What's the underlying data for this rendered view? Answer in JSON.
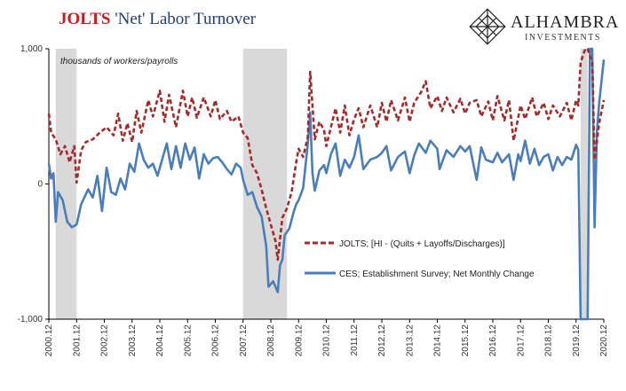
{
  "header": {
    "title_highlight": "JOLTS",
    "title_rest": " 'Net' Labor Turnover"
  },
  "logo": {
    "name": "ALHAMBRA",
    "sub": "INVESTMENTS",
    "icon": "diamond-lattice-icon"
  },
  "colors": {
    "jolts": "#a52a2a",
    "ces": "#4a7ebb",
    "recession": "#d9d9d9",
    "axis_text": "#333333"
  },
  "chart_data": {
    "type": "line",
    "title": "JOLTS 'Net' Labor Turnover",
    "annotation": "thousands of workers/payrolls",
    "ylim": [
      -1000,
      1000
    ],
    "y_ticks": [
      1000,
      0,
      -1000
    ],
    "y_tick_labels": [
      "1,000",
      "0",
      "-1,000"
    ],
    "x_range": [
      2000.917,
      2020.917
    ],
    "x_ticks": [
      2000.917,
      2001.917,
      2002.917,
      2003.917,
      2004.917,
      2005.917,
      2006.917,
      2007.917,
      2008.917,
      2009.917,
      2010.917,
      2011.917,
      2012.917,
      2013.917,
      2014.917,
      2015.917,
      2016.917,
      2017.917,
      2018.917,
      2019.917,
      2020.917
    ],
    "x_tick_labels": [
      "2000.12",
      "2001.12",
      "2002.12",
      "2003.12",
      "2004.12",
      "2005.12",
      "2006.12",
      "2007.12",
      "2008.12",
      "2009.12",
      "2010.12",
      "2011.12",
      "2012.12",
      "2013.12",
      "2014.12",
      "2015.12",
      "2016.12",
      "2017.12",
      "2018.12",
      "2019.12",
      "2020.12"
    ],
    "recessions": [
      [
        2001.167,
        2001.917
      ],
      [
        2007.917,
        2009.5
      ],
      [
        2020.083,
        2020.333
      ]
    ],
    "legend": "center-right",
    "series": [
      {
        "name": "JOLTS; [HI - (Quits + Layoffs/Discharges)]",
        "style": "dashed",
        "points": [
          [
            2000.917,
            520
          ],
          [
            2001.0,
            380
          ],
          [
            2001.167,
            330
          ],
          [
            2001.333,
            220
          ],
          [
            2001.5,
            280
          ],
          [
            2001.667,
            160
          ],
          [
            2001.833,
            280
          ],
          [
            2001.917,
            10
          ],
          [
            2002.083,
            250
          ],
          [
            2002.25,
            310
          ],
          [
            2002.5,
            330
          ],
          [
            2002.75,
            380
          ],
          [
            2003.0,
            420
          ],
          [
            2003.25,
            360
          ],
          [
            2003.417,
            520
          ],
          [
            2003.583,
            320
          ],
          [
            2003.75,
            450
          ],
          [
            2003.917,
            310
          ],
          [
            2004.083,
            540
          ],
          [
            2004.25,
            380
          ],
          [
            2004.5,
            620
          ],
          [
            2004.667,
            500
          ],
          [
            2004.917,
            690
          ],
          [
            2005.083,
            460
          ],
          [
            2005.25,
            660
          ],
          [
            2005.5,
            420
          ],
          [
            2005.75,
            690
          ],
          [
            2005.917,
            500
          ],
          [
            2006.083,
            640
          ],
          [
            2006.25,
            490
          ],
          [
            2006.5,
            640
          ],
          [
            2006.75,
            500
          ],
          [
            2006.917,
            620
          ],
          [
            2007.083,
            480
          ],
          [
            2007.333,
            540
          ],
          [
            2007.5,
            460
          ],
          [
            2007.75,
            500
          ],
          [
            2007.917,
            380
          ],
          [
            2008.083,
            340
          ],
          [
            2008.25,
            140
          ],
          [
            2008.417,
            80
          ],
          [
            2008.583,
            -40
          ],
          [
            2008.75,
            -180
          ],
          [
            2008.917,
            -300
          ],
          [
            2009.083,
            -420
          ],
          [
            2009.167,
            -560
          ],
          [
            2009.333,
            -250
          ],
          [
            2009.5,
            -180
          ],
          [
            2009.667,
            -60
          ],
          [
            2009.833,
            160
          ],
          [
            2009.917,
            260
          ],
          [
            2010.083,
            200
          ],
          [
            2010.25,
            350
          ],
          [
            2010.333,
            830
          ],
          [
            2010.5,
            330
          ],
          [
            2010.667,
            460
          ],
          [
            2010.833,
            400
          ],
          [
            2010.917,
            280
          ],
          [
            2011.083,
            420
          ],
          [
            2011.25,
            560
          ],
          [
            2011.417,
            380
          ],
          [
            2011.583,
            580
          ],
          [
            2011.75,
            360
          ],
          [
            2011.917,
            480
          ],
          [
            2012.083,
            560
          ],
          [
            2012.25,
            420
          ],
          [
            2012.5,
            580
          ],
          [
            2012.75,
            420
          ],
          [
            2012.917,
            600
          ],
          [
            2013.083,
            460
          ],
          [
            2013.25,
            620
          ],
          [
            2013.5,
            470
          ],
          [
            2013.75,
            640
          ],
          [
            2013.917,
            460
          ],
          [
            2014.083,
            600
          ],
          [
            2014.333,
            680
          ],
          [
            2014.5,
            760
          ],
          [
            2014.667,
            560
          ],
          [
            2014.917,
            650
          ],
          [
            2015.083,
            540
          ],
          [
            2015.25,
            640
          ],
          [
            2015.5,
            530
          ],
          [
            2015.75,
            630
          ],
          [
            2015.917,
            520
          ],
          [
            2016.083,
            600
          ],
          [
            2016.333,
            620
          ],
          [
            2016.5,
            500
          ],
          [
            2016.75,
            610
          ],
          [
            2016.917,
            470
          ],
          [
            2017.083,
            650
          ],
          [
            2017.333,
            470
          ],
          [
            2017.5,
            620
          ],
          [
            2017.667,
            320
          ],
          [
            2017.917,
            580
          ],
          [
            2018.083,
            480
          ],
          [
            2018.333,
            640
          ],
          [
            2018.5,
            500
          ],
          [
            2018.75,
            600
          ],
          [
            2018.917,
            480
          ],
          [
            2019.083,
            580
          ],
          [
            2019.333,
            500
          ],
          [
            2019.583,
            600
          ],
          [
            2019.75,
            470
          ],
          [
            2019.917,
            620
          ],
          [
            2020.0,
            580
          ],
          [
            2020.083,
            900
          ],
          [
            2020.25,
            1000
          ],
          [
            2020.333,
            1000
          ],
          [
            2020.5,
            900
          ],
          [
            2020.583,
            180
          ],
          [
            2020.75,
            450
          ],
          [
            2020.917,
            620
          ]
        ]
      },
      {
        "name": "CES; Establishment Survey; Net Monthly Change",
        "style": "solid",
        "points": [
          [
            2000.917,
            150
          ],
          [
            2001.0,
            40
          ],
          [
            2001.083,
            80
          ],
          [
            2001.167,
            -280
          ],
          [
            2001.25,
            -60
          ],
          [
            2001.417,
            -120
          ],
          [
            2001.583,
            -280
          ],
          [
            2001.75,
            -320
          ],
          [
            2001.917,
            -300
          ],
          [
            2002.083,
            -150
          ],
          [
            2002.333,
            -40
          ],
          [
            2002.5,
            -100
          ],
          [
            2002.667,
            60
          ],
          [
            2002.833,
            -200
          ],
          [
            2003.0,
            120
          ],
          [
            2003.167,
            -60
          ],
          [
            2003.333,
            -80
          ],
          [
            2003.5,
            40
          ],
          [
            2003.667,
            -40
          ],
          [
            2003.833,
            150
          ],
          [
            2004.0,
            90
          ],
          [
            2004.167,
            300
          ],
          [
            2004.333,
            180
          ],
          [
            2004.5,
            120
          ],
          [
            2004.667,
            150
          ],
          [
            2004.833,
            60
          ],
          [
            2005.0,
            180
          ],
          [
            2005.167,
            300
          ],
          [
            2005.333,
            110
          ],
          [
            2005.5,
            280
          ],
          [
            2005.667,
            120
          ],
          [
            2005.833,
            300
          ],
          [
            2006.0,
            180
          ],
          [
            2006.167,
            270
          ],
          [
            2006.333,
            40
          ],
          [
            2006.5,
            220
          ],
          [
            2006.667,
            150
          ],
          [
            2006.833,
            190
          ],
          [
            2007.0,
            200
          ],
          [
            2007.167,
            160
          ],
          [
            2007.333,
            110
          ],
          [
            2007.5,
            70
          ],
          [
            2007.667,
            150
          ],
          [
            2007.833,
            120
          ],
          [
            2007.917,
            30
          ],
          [
            2008.083,
            -80
          ],
          [
            2008.25,
            -60
          ],
          [
            2008.417,
            -170
          ],
          [
            2008.583,
            -240
          ],
          [
            2008.75,
            -460
          ],
          [
            2008.833,
            -760
          ],
          [
            2009.0,
            -720
          ],
          [
            2009.167,
            -800
          ],
          [
            2009.25,
            -600
          ],
          [
            2009.333,
            -560
          ],
          [
            2009.417,
            -380
          ],
          [
            2009.583,
            -330
          ],
          [
            2009.75,
            -200
          ],
          [
            2009.833,
            -150
          ],
          [
            2009.917,
            -120
          ],
          [
            2010.083,
            -30
          ],
          [
            2010.25,
            300
          ],
          [
            2010.333,
            530
          ],
          [
            2010.417,
            80
          ],
          [
            2010.5,
            -50
          ],
          [
            2010.667,
            100
          ],
          [
            2010.833,
            140
          ],
          [
            2010.917,
            80
          ],
          [
            2011.083,
            220
          ],
          [
            2011.25,
            300
          ],
          [
            2011.417,
            60
          ],
          [
            2011.583,
            180
          ],
          [
            2011.75,
            120
          ],
          [
            2011.917,
            200
          ],
          [
            2012.083,
            360
          ],
          [
            2012.25,
            110
          ],
          [
            2012.5,
            180
          ],
          [
            2012.75,
            200
          ],
          [
            2012.917,
            230
          ],
          [
            2013.083,
            280
          ],
          [
            2013.25,
            100
          ],
          [
            2013.5,
            200
          ],
          [
            2013.75,
            240
          ],
          [
            2013.917,
            80
          ],
          [
            2014.083,
            210
          ],
          [
            2014.25,
            300
          ],
          [
            2014.5,
            230
          ],
          [
            2014.667,
            320
          ],
          [
            2014.917,
            260
          ],
          [
            2015.0,
            110
          ],
          [
            2015.25,
            250
          ],
          [
            2015.5,
            200
          ],
          [
            2015.75,
            280
          ],
          [
            2015.917,
            240
          ],
          [
            2016.083,
            280
          ],
          [
            2016.333,
            30
          ],
          [
            2016.5,
            270
          ],
          [
            2016.667,
            180
          ],
          [
            2016.917,
            160
          ],
          [
            2017.083,
            230
          ],
          [
            2017.25,
            160
          ],
          [
            2017.5,
            220
          ],
          [
            2017.667,
            30
          ],
          [
            2017.833,
            220
          ],
          [
            2017.917,
            170
          ],
          [
            2018.083,
            320
          ],
          [
            2018.25,
            150
          ],
          [
            2018.417,
            260
          ],
          [
            2018.583,
            140
          ],
          [
            2018.75,
            200
          ],
          [
            2018.917,
            220
          ],
          [
            2019.083,
            100
          ],
          [
            2019.25,
            200
          ],
          [
            2019.417,
            140
          ],
          [
            2019.583,
            200
          ],
          [
            2019.75,
            180
          ],
          [
            2019.917,
            290
          ],
          [
            2020.0,
            250
          ],
          [
            2020.083,
            -1000
          ],
          [
            2020.167,
            -1000
          ],
          [
            2020.25,
            -1000
          ],
          [
            2020.333,
            -1000
          ],
          [
            2020.417,
            1000
          ],
          [
            2020.5,
            1000
          ],
          [
            2020.583,
            -320
          ],
          [
            2020.667,
            380
          ],
          [
            2020.75,
            600
          ],
          [
            2020.917,
            920
          ]
        ]
      }
    ]
  }
}
